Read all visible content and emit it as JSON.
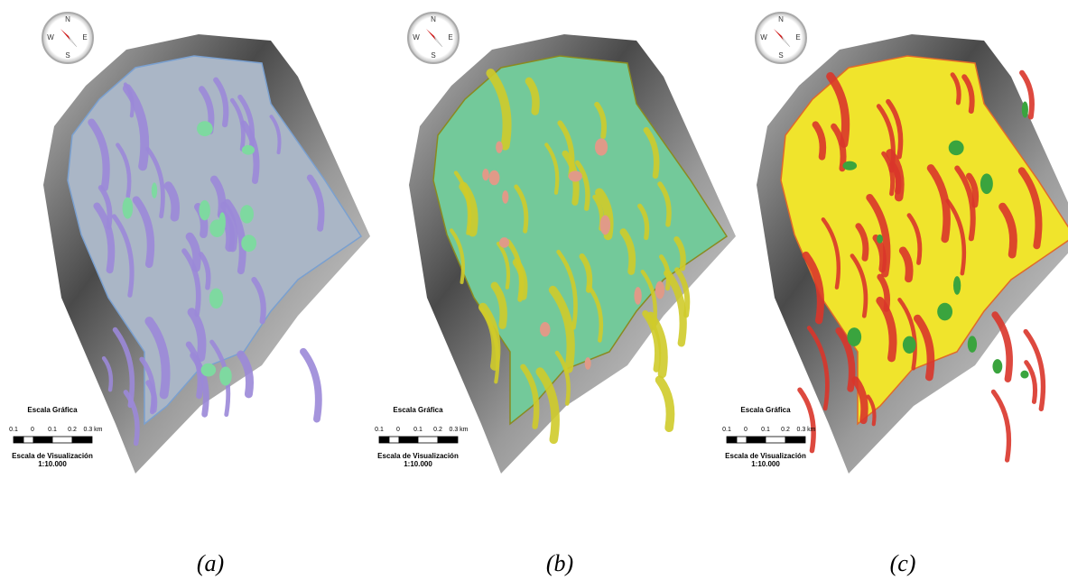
{
  "panels": [
    {
      "compass": {
        "n": "N",
        "w": "W",
        "e": "E",
        "s": "S"
      },
      "scale": {
        "title": "Escala Gráfica",
        "labels": [
          "0.1",
          "0",
          "0.1",
          "0.2",
          "0.3 km"
        ],
        "subtitle": "Escala de Visualización",
        "ratio": "1:10.000"
      },
      "caption": "(a)"
    },
    {
      "compass": {
        "n": "N",
        "w": "W",
        "e": "E",
        "s": "S"
      },
      "scale": {
        "title": "Escala Gráfica",
        "labels": [
          "0.1",
          "0",
          "0.1",
          "0.2",
          "0.3 km"
        ],
        "subtitle": "Escala de Visualización",
        "ratio": "1:10.000"
      },
      "caption": "(b)"
    },
    {
      "compass": {
        "n": "N",
        "w": "W",
        "e": "E",
        "s": "S"
      },
      "scale": {
        "title": "Escala Gráfica",
        "labels": [
          "0.1",
          "0",
          "0.1",
          "0.2",
          "0.3 km"
        ],
        "subtitle": "Escala de Visualización",
        "ratio": "1:10.000"
      },
      "caption": "(c)"
    }
  ]
}
